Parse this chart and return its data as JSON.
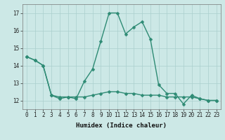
{
  "line1_x": [
    0,
    1,
    2,
    3,
    4,
    5,
    6,
    7,
    8,
    9,
    10,
    11,
    12,
    13,
    14,
    15,
    16,
    17,
    18,
    19,
    20,
    21,
    22,
    23
  ],
  "line1_y": [
    14.5,
    14.3,
    14.0,
    12.3,
    12.1,
    12.2,
    12.1,
    13.1,
    13.8,
    15.4,
    17.0,
    17.0,
    15.8,
    16.2,
    16.5,
    15.5,
    12.9,
    12.4,
    12.4,
    11.8,
    12.3,
    12.1,
    12.0,
    12.0
  ],
  "line2_x": [
    0,
    1,
    2,
    3,
    4,
    5,
    6,
    7,
    8,
    9,
    10,
    11,
    12,
    13,
    14,
    15,
    16,
    17,
    18,
    19,
    20,
    21,
    22,
    23
  ],
  "line2_y": [
    14.5,
    14.3,
    14.0,
    12.3,
    12.2,
    12.2,
    12.2,
    12.2,
    12.3,
    12.4,
    12.5,
    12.5,
    12.4,
    12.4,
    12.3,
    12.3,
    12.3,
    12.2,
    12.2,
    12.2,
    12.2,
    12.1,
    12.0,
    12.0
  ],
  "line_color": "#2e8b74",
  "bg_color": "#cce8e6",
  "grid_color": "#aacfcd",
  "xlabel": "Humidex (Indice chaleur)",
  "ylim": [
    11.5,
    17.5
  ],
  "xlim": [
    -0.5,
    23.5
  ],
  "yticks": [
    12,
    13,
    14,
    15,
    16,
    17
  ],
  "xticks": [
    0,
    1,
    2,
    3,
    4,
    5,
    6,
    7,
    8,
    9,
    10,
    11,
    12,
    13,
    14,
    15,
    16,
    17,
    18,
    19,
    20,
    21,
    22,
    23
  ],
  "xtick_labels": [
    "0",
    "1",
    "2",
    "3",
    "4",
    "5",
    "6",
    "7",
    "8",
    "9",
    "10",
    "11",
    "12",
    "13",
    "14",
    "15",
    "16",
    "17",
    "18",
    "19",
    "20",
    "21",
    "22",
    "23"
  ],
  "marker_size": 2.5,
  "line_width": 1.0,
  "tick_fontsize": 5.5,
  "xlabel_fontsize": 6.5
}
